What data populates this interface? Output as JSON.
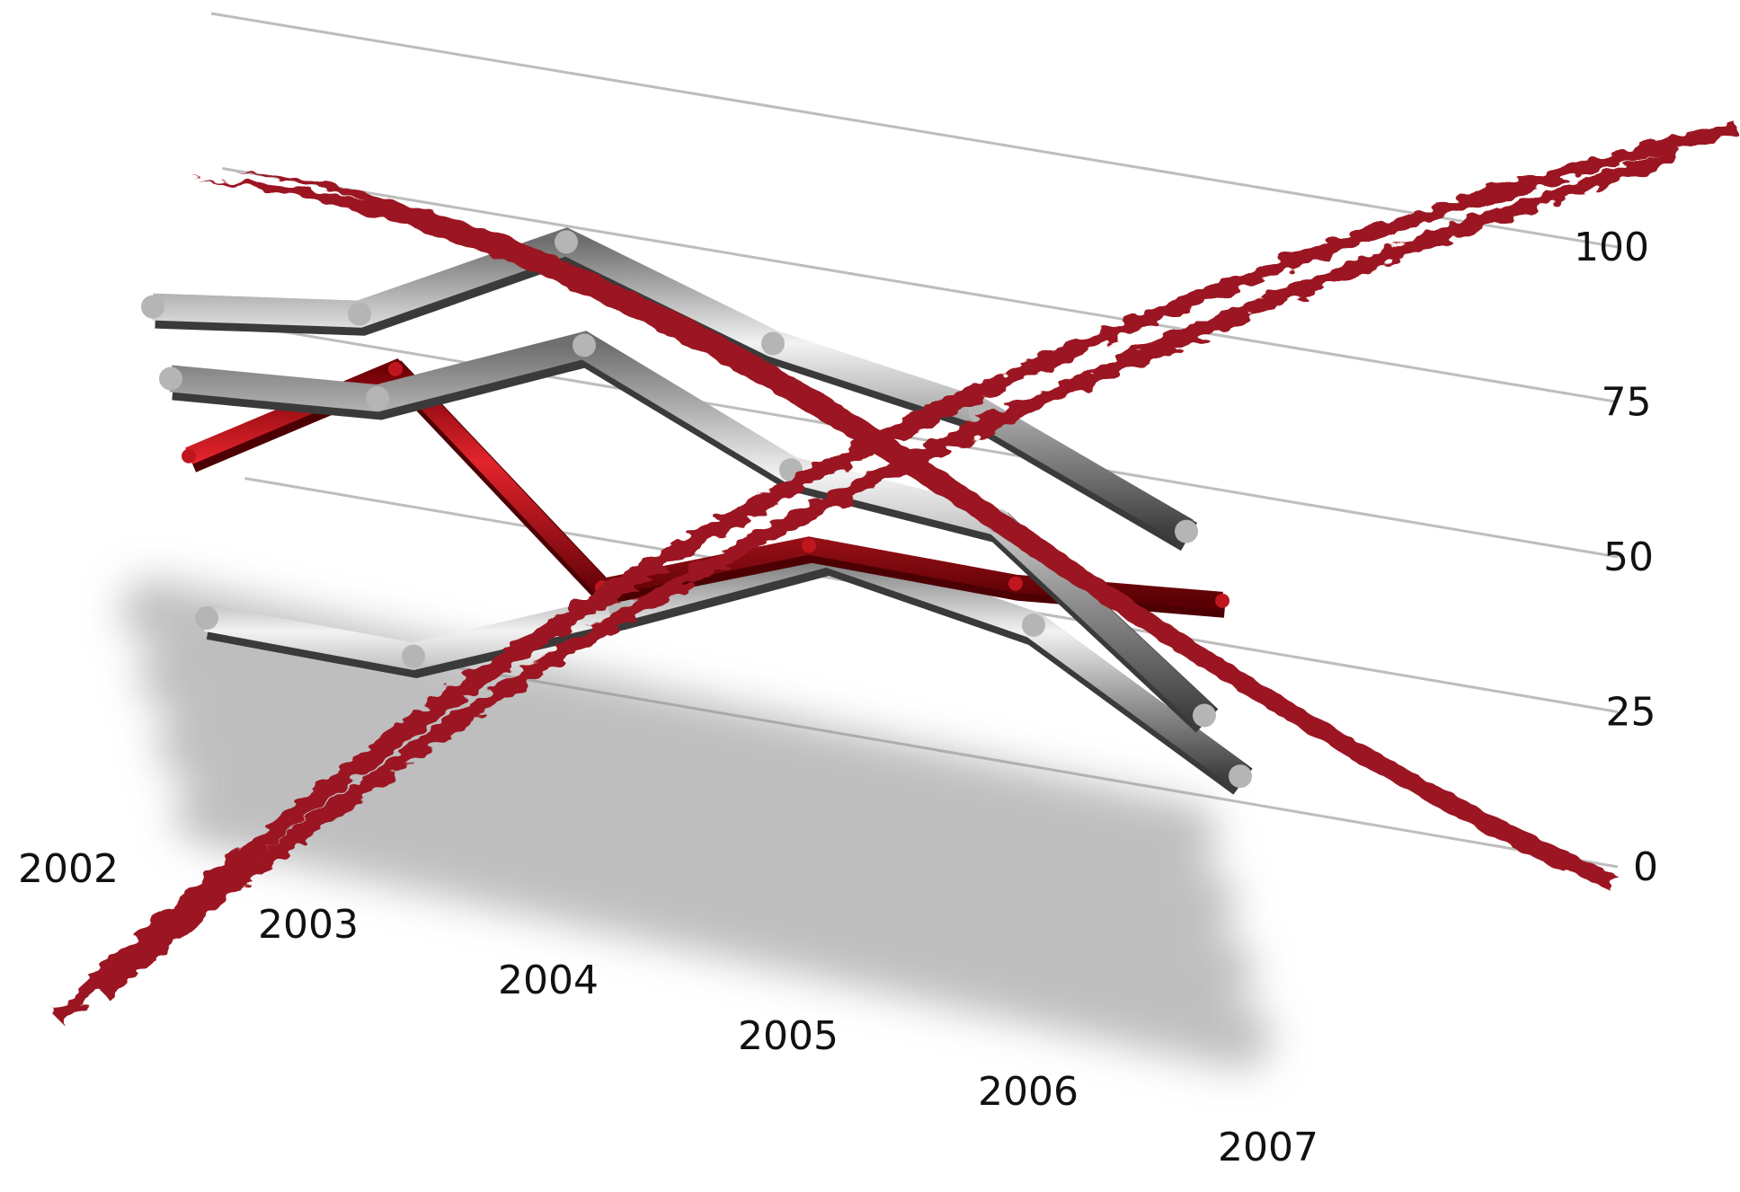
{
  "chart_data": {
    "type": "line",
    "style": "3d-ribbon",
    "categories": [
      "2002",
      "2003",
      "2004",
      "2005",
      "2006",
      "2007"
    ],
    "ylim": [
      0,
      100
    ],
    "y_ticks": [
      "0",
      "25",
      "50",
      "75",
      "100"
    ],
    "grid": true,
    "legend": "none",
    "overlay": "red-x-cross",
    "series": [
      {
        "values": [
          52,
          62,
          93,
          78,
          72,
          52
        ],
        "color": "#9a9a9a",
        "depth": 0
      },
      {
        "values": [
          48,
          55,
          82,
          60,
          58,
          17
        ],
        "color": "#9a9a9a",
        "depth": 1
      },
      {
        "values": [
          42,
          80,
          30,
          55,
          57,
          65
        ],
        "color": "#c0161e",
        "depth": 2
      },
      {
        "values": [
          10,
          12,
          40,
          70,
          62,
          30
        ],
        "color": "#9a9a9a",
        "depth": 3
      }
    ],
    "colors": {
      "gray": "#9a9a9a",
      "red": "#c0161e",
      "x_mark": "#9b1620",
      "grid": "#bdbdbd",
      "text": "#111111"
    }
  }
}
